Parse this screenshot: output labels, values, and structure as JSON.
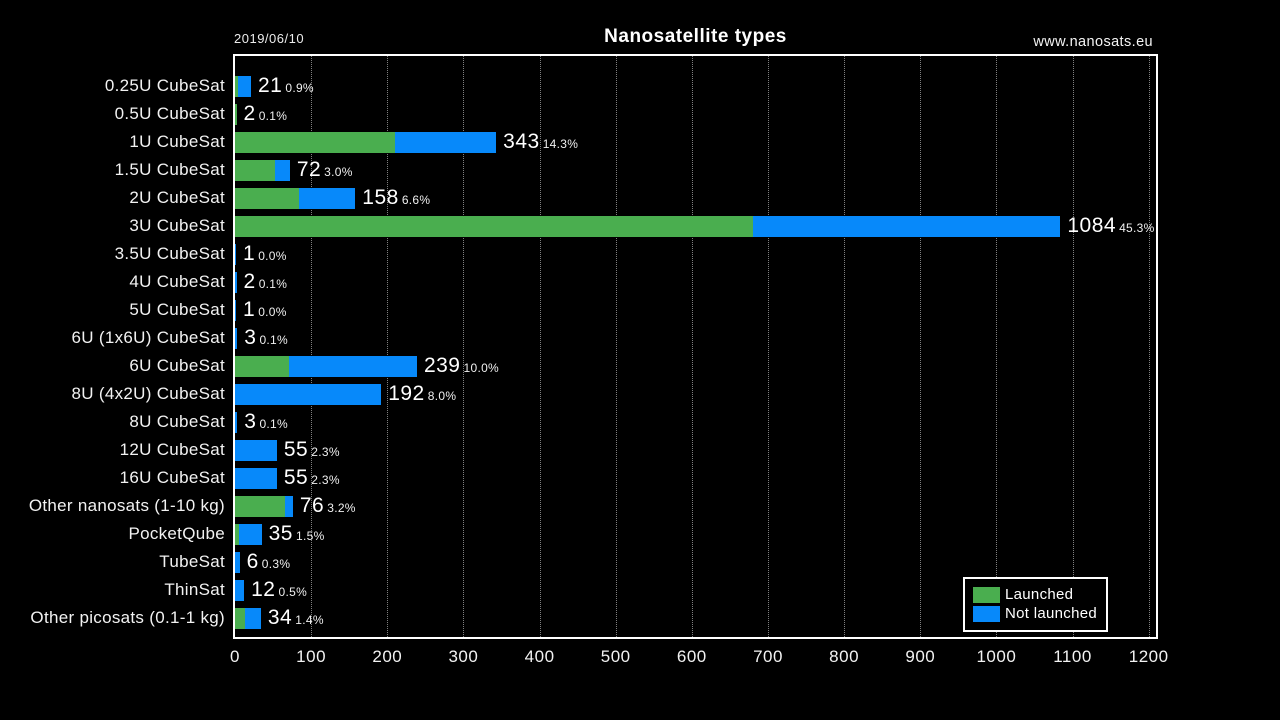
{
  "meta": {
    "date": "2019/06/10",
    "title": "Nanosatellite types",
    "website": "www.nanosats.eu"
  },
  "colors": {
    "background": "#000000",
    "launched": "#4aae4f",
    "not_launched": "#0789fa",
    "text": "#ffffff",
    "plot_border": "#ffffff"
  },
  "legend": {
    "items": [
      {
        "label": "Launched",
        "color": "#4aae4f"
      },
      {
        "label": "Not launched",
        "color": "#0789fa"
      }
    ]
  },
  "chart_data": {
    "type": "bar",
    "orientation": "horizontal",
    "stacked": true,
    "title": "Nanosatellite types",
    "categories": [
      "0.25U CubeSat",
      "0.5U CubeSat",
      "1U CubeSat",
      "1.5U CubeSat",
      "2U CubeSat",
      "3U CubeSat",
      "3.5U CubeSat",
      "4U CubeSat",
      "5U CubeSat",
      "6U (1x6U) CubeSat",
      "6U CubeSat",
      "8U (4x2U) CubeSat",
      "8U CubeSat",
      "12U CubeSat",
      "16U CubeSat",
      "Other nanosats (1-10 kg)",
      "PocketQube",
      "TubeSat",
      "ThinSat",
      "Other picosats (0.1-1 kg)"
    ],
    "series": [
      {
        "name": "Launched",
        "color": "#4aae4f",
        "values": [
          4,
          2,
          210,
          53,
          84,
          680,
          0,
          0,
          0,
          0,
          71,
          0,
          0,
          0,
          0,
          66,
          5,
          0,
          0,
          13
        ]
      },
      {
        "name": "Not launched",
        "color": "#0789fa",
        "values": [
          17,
          0,
          133,
          19,
          74,
          404,
          1,
          2,
          1,
          3,
          168,
          192,
          3,
          55,
          55,
          10,
          30,
          6,
          12,
          21
        ]
      }
    ],
    "totals": [
      21,
      2,
      343,
      72,
      158,
      1084,
      1,
      2,
      1,
      3,
      239,
      192,
      3,
      55,
      55,
      76,
      35,
      6,
      12,
      34
    ],
    "percent_labels": [
      "0.9%",
      "0.1%",
      "14.3%",
      "3.0%",
      "6.6%",
      "45.3%",
      "0.0%",
      "0.1%",
      "0.0%",
      "0.1%",
      "10.0%",
      "8.0%",
      "0.1%",
      "2.3%",
      "2.3%",
      "3.2%",
      "1.5%",
      "0.3%",
      "0.5%",
      "1.4%"
    ],
    "xlabel": "",
    "ylabel": "",
    "xlim": [
      0,
      1200
    ],
    "x_ticks": [
      0,
      100,
      200,
      300,
      400,
      500,
      600,
      700,
      800,
      900,
      1000,
      1100,
      1200
    ],
    "grid": "vertical-dotted",
    "legend_position": "bottom-right"
  }
}
